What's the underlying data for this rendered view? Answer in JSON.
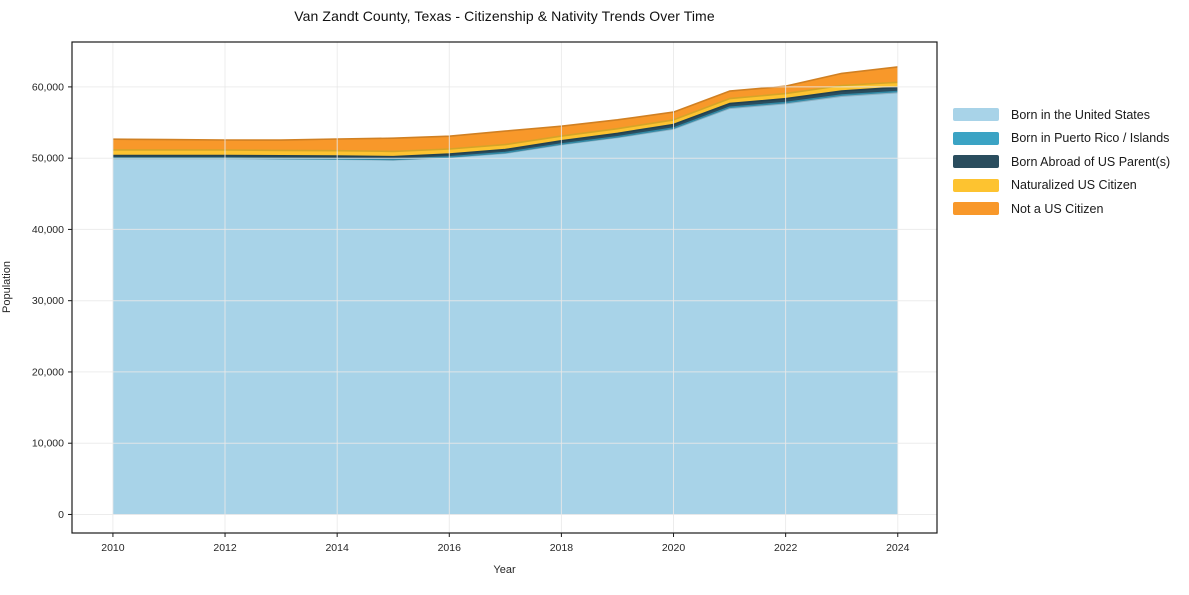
{
  "title": "Van Zandt County, Texas - Citizenship & Nativity Trends Over Time",
  "chart_data": {
    "type": "area",
    "stacked": true,
    "title": "Van Zandt County, Texas - Citizenship & Nativity Trends Over Time",
    "xlabel": "Year",
    "ylabel": "Population",
    "x": [
      2010,
      2011,
      2012,
      2013,
      2014,
      2015,
      2016,
      2017,
      2018,
      2019,
      2020,
      2021,
      2022,
      2023,
      2024
    ],
    "series": [
      {
        "name": "Born in the United States",
        "color": "#a8d3e8",
        "values": [
          49950,
          49950,
          49950,
          49900,
          49850,
          49750,
          50100,
          50700,
          51900,
          52900,
          54100,
          57000,
          57650,
          58700,
          59200
        ]
      },
      {
        "name": "Born in Puerto Rico / Islands",
        "color": "#3ba3c4",
        "values": [
          60,
          60,
          60,
          60,
          60,
          70,
          80,
          80,
          90,
          100,
          120,
          140,
          150,
          150,
          160
        ]
      },
      {
        "name": "Born Abroad of US Parent(s)",
        "color": "#2a4d5e",
        "values": [
          350,
          350,
          360,
          370,
          380,
          390,
          400,
          420,
          450,
          480,
          500,
          520,
          540,
          560,
          580
        ]
      },
      {
        "name": "Naturalized US Citizen",
        "color": "#fdc330",
        "values": [
          800,
          800,
          780,
          760,
          750,
          740,
          700,
          700,
          650,
          650,
          650,
          700,
          720,
          780,
          700
        ]
      },
      {
        "name": "Not a US Citizen",
        "color": "#f8982a",
        "values": [
          1500,
          1450,
          1400,
          1450,
          1650,
          1850,
          1800,
          1900,
          1400,
          1250,
          1100,
          1050,
          1040,
          1710,
          2160
        ]
      }
    ],
    "xticks": [
      2010,
      2012,
      2014,
      2016,
      2018,
      2020,
      2022,
      2024
    ],
    "yticks": [
      0,
      10000,
      20000,
      30000,
      40000,
      50000,
      60000
    ],
    "xlim": [
      2009.27,
      2024.7
    ],
    "ylim": [
      -2600,
      66300
    ],
    "grid": true,
    "legend_position": "right-outside"
  }
}
